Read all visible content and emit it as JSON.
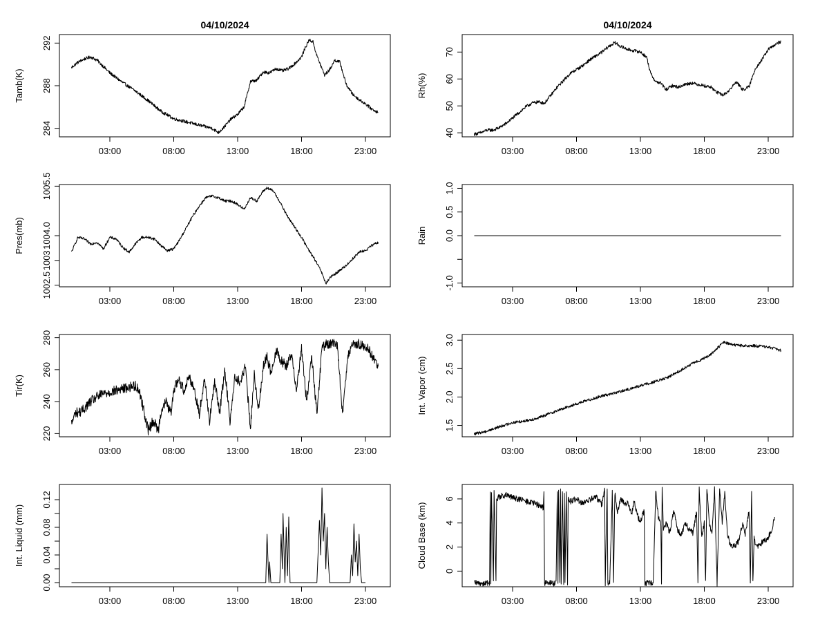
{
  "chart_data": [
    {
      "id": "tamb",
      "type": "line",
      "title": "04/10/2024",
      "ylabel": "Tamb(K)",
      "xlabel": "",
      "x_range": [
        0,
        24
      ],
      "ylim": [
        283.2,
        292.8
      ],
      "yticks": [
        284,
        288,
        292
      ],
      "ytick_labels": [
        "284",
        "288",
        "292"
      ],
      "xticks": [
        3,
        8,
        13,
        18,
        23
      ],
      "xtick_labels": [
        "03:00",
        "08:00",
        "13:00",
        "18:00",
        "23:00"
      ],
      "series": [
        {
          "name": "Tamb",
          "color": "#000000",
          "x": [
            0,
            0.5,
            1.0,
            1.5,
            2.0,
            2.5,
            3.0,
            4.0,
            5.0,
            6.0,
            7.0,
            8.0,
            9.0,
            10.0,
            11.0,
            11.5,
            12.0,
            12.5,
            13.0,
            13.5,
            13.8,
            14.0,
            14.5,
            15.0,
            15.5,
            16.0,
            16.5,
            17.0,
            17.5,
            18.0,
            18.3,
            18.6,
            18.9,
            19.2,
            19.5,
            19.8,
            20.2,
            20.6,
            21.0,
            21.5,
            22.0,
            22.5,
            23.0,
            23.5,
            24.0
          ],
          "y": [
            289.7,
            290.2,
            290.5,
            290.7,
            290.4,
            289.8,
            289.2,
            288.3,
            287.5,
            286.6,
            285.6,
            284.9,
            284.6,
            284.3,
            284.0,
            283.6,
            284.2,
            284.9,
            285.3,
            286.0,
            287.4,
            288.4,
            288.5,
            289.3,
            289.2,
            289.6,
            289.4,
            289.6,
            290.1,
            290.7,
            291.6,
            292.3,
            292.1,
            290.8,
            289.9,
            289.0,
            289.5,
            290.4,
            290.2,
            288.1,
            287.2,
            286.7,
            286.3,
            285.8,
            285.5
          ],
          "noise": 0.15
        }
      ]
    },
    {
      "id": "rh",
      "type": "line",
      "title": "04/10/2024",
      "ylabel": "Rh(%)",
      "xlabel": "",
      "x_range": [
        0,
        24
      ],
      "ylim": [
        38.5,
        76.5
      ],
      "yticks": [
        40,
        50,
        60,
        70
      ],
      "ytick_labels": [
        "40",
        "50",
        "60",
        "70"
      ],
      "xticks": [
        3,
        8,
        13,
        18,
        23
      ],
      "xtick_labels": [
        "03:00",
        "08:00",
        "13:00",
        "18:00",
        "23:00"
      ],
      "series": [
        {
          "name": "Rh",
          "color": "#000000",
          "x": [
            0,
            0.5,
            1.0,
            1.5,
            2.0,
            2.5,
            3.0,
            3.5,
            4.0,
            4.5,
            5.0,
            5.5,
            6.0,
            6.5,
            7.0,
            7.5,
            8.0,
            8.5,
            9.0,
            9.5,
            10.0,
            10.5,
            11.0,
            11.5,
            12.0,
            12.5,
            13.0,
            13.5,
            13.8,
            14.2,
            14.6,
            15.0,
            15.5,
            16.0,
            16.5,
            17.0,
            17.5,
            18.0,
            18.5,
            19.0,
            19.5,
            20.0,
            20.5,
            21.0,
            21.5,
            22.0,
            22.5,
            23.0,
            23.5,
            24.0
          ],
          "y": [
            39.5,
            40.0,
            41.0,
            41.0,
            42.0,
            43.5,
            45.5,
            47.5,
            49.5,
            51.0,
            51.5,
            51.0,
            54.0,
            57.0,
            59.5,
            62.0,
            63.5,
            65.0,
            67.0,
            68.5,
            70.0,
            72.0,
            73.5,
            72.0,
            71.0,
            70.5,
            70.0,
            68.0,
            62.0,
            59.0,
            58.5,
            56.0,
            57.5,
            57.0,
            58.0,
            58.5,
            58.0,
            57.5,
            57.0,
            55.0,
            54.0,
            56.0,
            59.0,
            56.0,
            57.0,
            64.0,
            67.0,
            71.0,
            72.5,
            74.0
          ],
          "noise": 0.6
        }
      ]
    },
    {
      "id": "pres",
      "type": "line",
      "title": "",
      "ylabel": "Pres(mb)",
      "xlabel": "",
      "x_range": [
        0,
        24
      ],
      "ylim": [
        1002.45,
        1005.55
      ],
      "yticks": [
        1002.5,
        1003.25,
        1004.0,
        1005.5
      ],
      "ytick_labels": [
        "1002.5",
        "1003",
        "1004.0",
        "1005.5"
      ],
      "xticks": [
        3,
        8,
        13,
        18,
        23
      ],
      "xtick_labels": [
        "03:00",
        "08:00",
        "13:00",
        "18:00",
        "23:00"
      ],
      "series": [
        {
          "name": "Pres",
          "color": "#000000",
          "x": [
            0,
            0.5,
            1.0,
            1.5,
            2.0,
            2.5,
            3.0,
            3.5,
            4.0,
            4.5,
            5.0,
            5.5,
            6.0,
            6.5,
            7.0,
            7.5,
            8.0,
            8.5,
            9.0,
            9.5,
            10.0,
            10.5,
            11.0,
            11.5,
            12.0,
            12.5,
            13.0,
            13.5,
            14.0,
            14.5,
            15.0,
            15.3,
            15.8,
            16.2,
            16.8,
            17.3,
            18.0,
            18.5,
            19.0,
            19.5,
            19.9,
            20.3,
            21.0,
            21.5,
            22.0,
            22.5,
            23.0,
            23.5,
            24.0
          ],
          "y": [
            1003.5,
            1003.95,
            1003.9,
            1003.75,
            1003.8,
            1003.6,
            1003.95,
            1003.9,
            1003.65,
            1003.5,
            1003.75,
            1003.95,
            1003.95,
            1003.9,
            1003.7,
            1003.55,
            1003.6,
            1003.9,
            1004.25,
            1004.6,
            1004.9,
            1005.15,
            1005.2,
            1005.15,
            1005.05,
            1005.05,
            1004.95,
            1004.8,
            1005.15,
            1005.05,
            1005.35,
            1005.45,
            1005.35,
            1005.1,
            1004.65,
            1004.35,
            1003.95,
            1003.6,
            1003.3,
            1002.95,
            1002.55,
            1002.75,
            1002.95,
            1003.1,
            1003.3,
            1003.5,
            1003.55,
            1003.7,
            1003.8
          ],
          "noise": 0.04
        }
      ]
    },
    {
      "id": "rain",
      "type": "line",
      "title": "",
      "ylabel": "Rain",
      "xlabel": "",
      "x_range": [
        0,
        24
      ],
      "ylim": [
        -1.08,
        1.08
      ],
      "yticks": [
        -1.0,
        -0.5,
        0.0,
        0.5,
        1.0
      ],
      "ytick_labels": [
        "-1.0",
        "",
        "0.0",
        "0.5",
        "1.0"
      ],
      "xticks": [
        3,
        8,
        13,
        18,
        23
      ],
      "xtick_labels": [
        "03:00",
        "08:00",
        "13:00",
        "18:00",
        "23:00"
      ],
      "series": [
        {
          "name": "Rain",
          "color": "#000000",
          "x": [
            0,
            24
          ],
          "y": [
            0,
            0
          ],
          "noise": 0
        }
      ]
    },
    {
      "id": "tir",
      "type": "line",
      "title": "",
      "ylabel": "Tir(K)",
      "xlabel": "",
      "x_range": [
        0,
        24
      ],
      "ylim": [
        218,
        282
      ],
      "yticks": [
        220,
        240,
        260,
        280
      ],
      "ytick_labels": [
        "220",
        "240",
        "260",
        "280"
      ],
      "xticks": [
        3,
        8,
        13,
        18,
        23
      ],
      "xtick_labels": [
        "03:00",
        "08:00",
        "13:00",
        "18:00",
        "23:00"
      ],
      "series": [
        {
          "name": "Tir",
          "color": "#000000",
          "x": [
            0,
            0.3,
            0.8,
            1.5,
            2.0,
            2.5,
            3.0,
            3.5,
            4.0,
            4.5,
            5.0,
            5.3,
            5.7,
            6.0,
            6.4,
            6.8,
            7.0,
            7.4,
            7.8,
            8.0,
            8.4,
            8.8,
            9.2,
            9.6,
            10.0,
            10.4,
            10.8,
            11.2,
            11.6,
            12.0,
            12.4,
            12.8,
            13.2,
            13.6,
            14.0,
            14.3,
            14.6,
            15.0,
            15.3,
            15.6,
            16.0,
            16.4,
            16.8,
            17.2,
            17.6,
            18.0,
            18.4,
            18.8,
            19.2,
            19.6,
            20.0,
            20.4,
            20.8,
            21.2,
            21.6,
            22.0,
            22.4,
            22.8,
            23.2,
            23.6,
            24.0
          ],
          "y": [
            226,
            233,
            234,
            240,
            243,
            245,
            246,
            247,
            248,
            249,
            250,
            247,
            233,
            222,
            228,
            222,
            234,
            240,
            232,
            248,
            254,
            247,
            256,
            248,
            232,
            255,
            228,
            252,
            234,
            260,
            228,
            256,
            252,
            262,
            223,
            258,
            234,
            262,
            268,
            258,
            272,
            266,
            262,
            270,
            248,
            273,
            240,
            268,
            232,
            274,
            276,
            276,
            276,
            232,
            268,
            275,
            276,
            275,
            273,
            268,
            262
          ],
          "noise": 3.2
        }
      ]
    },
    {
      "id": "vapor",
      "type": "line",
      "title": "",
      "ylabel": "Int. Vapor (cm)",
      "xlabel": "",
      "x_range": [
        0,
        24
      ],
      "ylim": [
        1.3,
        3.1
      ],
      "yticks": [
        1.5,
        2.0,
        2.5,
        3.0
      ],
      "ytick_labels": [
        "1.5",
        "2.0",
        "2.5",
        "3.0"
      ],
      "xticks": [
        3,
        8,
        13,
        18,
        23
      ],
      "xtick_labels": [
        "03:00",
        "08:00",
        "13:00",
        "18:00",
        "23:00"
      ],
      "series": [
        {
          "name": "Int. Vapor",
          "color": "#000000",
          "x": [
            0,
            1.0,
            2.0,
            3.0,
            4.0,
            5.0,
            6.0,
            7.0,
            8.0,
            9.0,
            10.0,
            11.0,
            12.0,
            13.0,
            14.0,
            15.0,
            16.0,
            17.0,
            18.0,
            18.5,
            19.0,
            19.5,
            20.0,
            21.0,
            22.0,
            23.0,
            24.0
          ],
          "y": [
            1.35,
            1.4,
            1.48,
            1.55,
            1.58,
            1.63,
            1.72,
            1.8,
            1.88,
            1.95,
            2.02,
            2.07,
            2.13,
            2.2,
            2.26,
            2.33,
            2.45,
            2.58,
            2.68,
            2.75,
            2.85,
            2.97,
            2.93,
            2.9,
            2.9,
            2.88,
            2.82
          ],
          "noise": 0.025
        }
      ]
    },
    {
      "id": "liquid",
      "type": "line",
      "title": "",
      "ylabel": "Int. Liquid (mm)",
      "xlabel": "",
      "x_range": [
        0,
        24
      ],
      "ylim": [
        -0.006,
        0.142
      ],
      "yticks": [
        0.0,
        0.02,
        0.04,
        0.06,
        0.08,
        0.1,
        0.12
      ],
      "ytick_labels": [
        "0.00",
        "",
        "0.04",
        "",
        "0.08",
        "",
        "0.12"
      ],
      "xticks": [
        3,
        8,
        13,
        18,
        23
      ],
      "xtick_labels": [
        "03:00",
        "08:00",
        "13:00",
        "18:00",
        "23:00"
      ],
      "series": [
        {
          "name": "Int. Liquid",
          "color": "#000000",
          "x": [
            0,
            15.2,
            15.3,
            15.4,
            15.45,
            15.5,
            15.6,
            16.3,
            16.4,
            16.5,
            16.55,
            16.7,
            16.8,
            16.9,
            17.0,
            17.1,
            17.2,
            19.2,
            19.4,
            19.5,
            19.6,
            19.7,
            19.8,
            19.9,
            20.0,
            20.1,
            20.2,
            21.8,
            21.9,
            22.0,
            22.1,
            22.2,
            22.3,
            22.4,
            22.5,
            22.6,
            22.7,
            23.0
          ],
          "y": [
            0,
            0,
            0.07,
            0.02,
            0,
            0.03,
            0,
            0,
            0.07,
            0.02,
            0.1,
            0,
            0.08,
            0.01,
            0.095,
            0,
            0,
            0,
            0.09,
            0.04,
            0.137,
            0.06,
            0.1,
            0.02,
            0.08,
            0.03,
            0,
            0,
            0.04,
            0.01,
            0.085,
            0.03,
            0.06,
            0.01,
            0.07,
            0.02,
            0,
            0
          ],
          "noise": 0
        }
      ]
    },
    {
      "id": "cloudbase",
      "type": "line",
      "title": "",
      "ylabel": "Cloud Base (km)",
      "xlabel": "",
      "x_range": [
        0,
        24
      ],
      "ylim": [
        -1.3,
        7.2
      ],
      "yticks": [
        0,
        2,
        4,
        6
      ],
      "ytick_labels": [
        "0",
        "2",
        "4",
        "6"
      ],
      "xticks": [
        3,
        8,
        13,
        18,
        23
      ],
      "xtick_labels": [
        "03:00",
        "08:00",
        "13:00",
        "18:00",
        "23:00"
      ],
      "series": [
        {
          "name": "Cloud Base",
          "color": "#000000",
          "x": [
            0,
            1.2,
            1.25,
            1.3,
            1.35,
            1.5,
            1.55,
            1.7,
            1.75,
            2.0,
            2.5,
            3.0,
            3.5,
            4.0,
            4.5,
            5.0,
            5.4,
            5.45,
            5.5,
            5.55,
            6.4,
            6.5,
            6.55,
            6.6,
            6.7,
            6.75,
            6.8,
            6.9,
            7.0,
            7.05,
            7.1,
            7.2,
            7.3,
            7.35,
            7.5,
            8.0,
            8.5,
            9.0,
            9.5,
            10.0,
            10.2,
            10.25,
            10.4,
            10.45,
            10.6,
            10.8,
            10.9,
            11.0,
            11.2,
            11.5,
            11.8,
            12.0,
            12.3,
            12.5,
            12.8,
            13.0,
            13.3,
            13.35,
            13.4,
            14.0,
            14.2,
            14.4,
            14.6,
            14.65,
            14.7,
            14.8,
            15.0,
            15.3,
            15.6,
            15.9,
            16.2,
            16.5,
            16.8,
            17.1,
            17.4,
            17.5,
            17.6,
            17.8,
            18.0,
            18.1,
            18.2,
            18.4,
            18.6,
            18.8,
            19.0,
            19.2,
            19.4,
            19.6,
            19.8,
            20.0,
            20.3,
            20.7,
            21.0,
            21.2,
            21.5,
            21.6,
            21.7,
            21.8,
            21.9,
            22.0,
            22.3,
            22.7,
            23.0,
            23.3,
            23.5
          ],
          "y": [
            -1,
            -1,
            6.8,
            -1,
            6.5,
            -1,
            6.8,
            -1,
            6.0,
            6.2,
            6.3,
            6.1,
            6.0,
            5.8,
            5.7,
            5.5,
            5.3,
            6.7,
            -1,
            -1,
            -1,
            6.8,
            -1,
            6.8,
            -1,
            6.8,
            -1,
            6.8,
            -1,
            6.5,
            -1,
            6.8,
            -1,
            6.0,
            5.8,
            6.0,
            5.6,
            5.9,
            6.2,
            5.5,
            7.0,
            -1,
            7.0,
            -1,
            -1,
            6.5,
            -1,
            6.5,
            5.0,
            6.0,
            5.5,
            5.8,
            4.7,
            5.8,
            4.5,
            4.2,
            5.0,
            -1,
            -1,
            -1,
            6.8,
            4.5,
            4.0,
            -1,
            6.8,
            3.5,
            4.0,
            3.2,
            5.0,
            3.5,
            3.0,
            4.0,
            3.5,
            3.2,
            5.0,
            -1,
            6.8,
            3.0,
            4.0,
            -1,
            6.8,
            4.0,
            3.0,
            6.8,
            -1,
            6.8,
            4.0,
            6.5,
            3.2,
            2.2,
            2.0,
            2.5,
            4.0,
            3.0,
            5.0,
            -1,
            6.5,
            -1,
            3.0,
            2.0,
            2.2,
            2.5,
            2.8,
            3.5,
            4.5
          ],
          "noise": 0.25
        }
      ]
    }
  ]
}
